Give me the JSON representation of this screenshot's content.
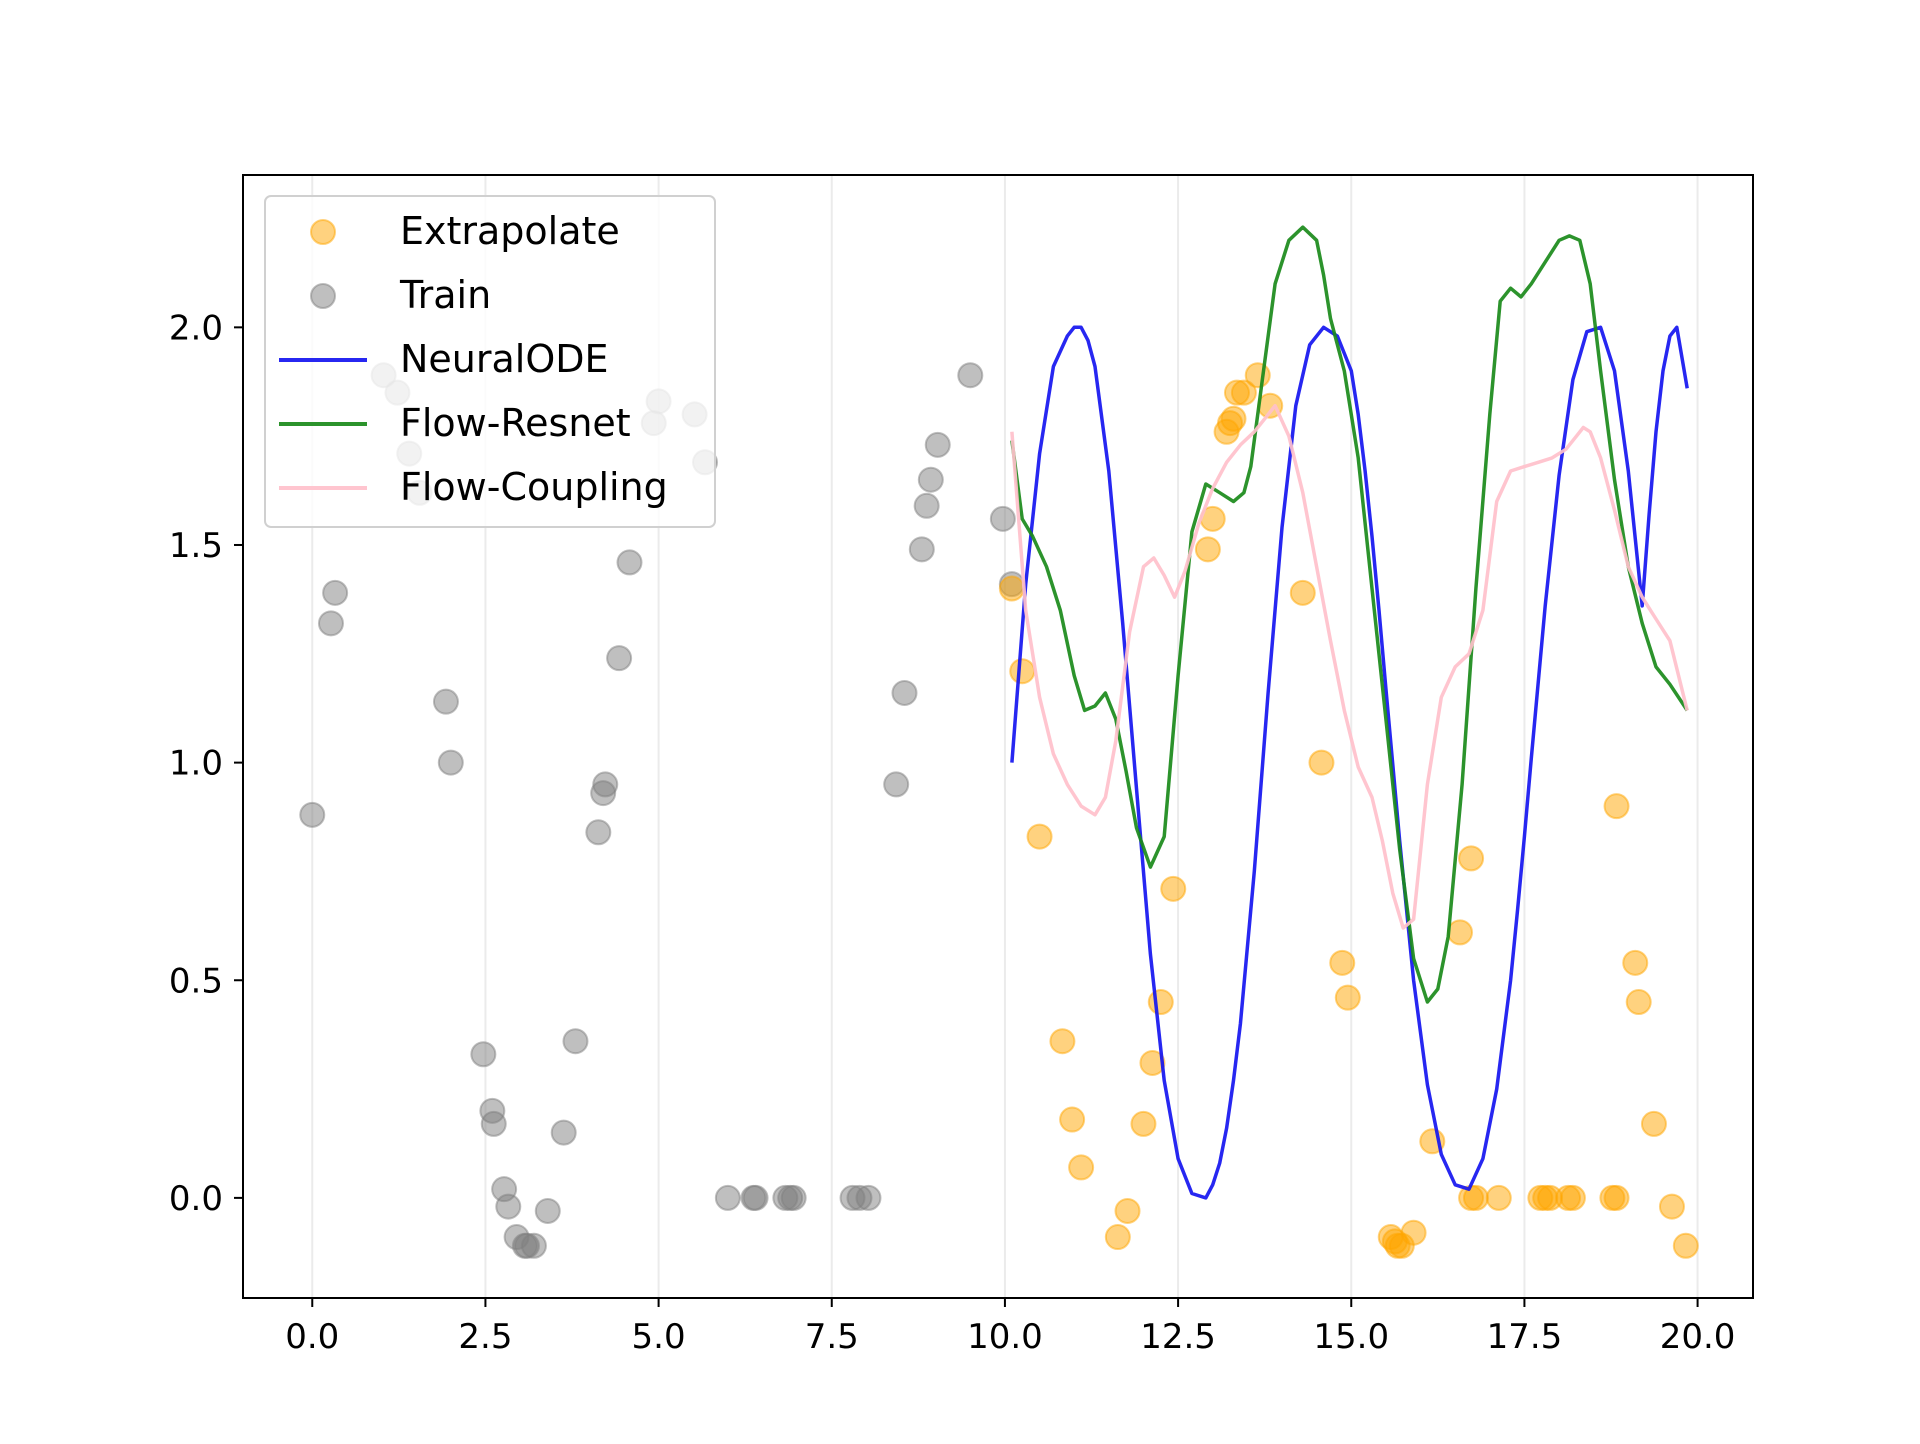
{
  "chart_data": {
    "type": "scatter",
    "title": "",
    "xlabel": "",
    "ylabel": "",
    "xlim": [
      -1.0,
      20.8
    ],
    "ylim": [
      -0.23,
      2.35
    ],
    "xticks": [
      0.0,
      2.5,
      5.0,
      7.5,
      10.0,
      12.5,
      15.0,
      17.5,
      20.0
    ],
    "xtick_labels": [
      "0.0",
      "2.5",
      "5.0",
      "7.5",
      "10.0",
      "12.5",
      "15.0",
      "17.5",
      "20.0"
    ],
    "yticks": [
      0.0,
      0.5,
      1.0,
      1.5,
      2.0
    ],
    "ytick_labels": [
      "0.0",
      "0.5",
      "1.0",
      "1.5",
      "2.0"
    ],
    "grid": "vertical",
    "legend_position": "upper-left",
    "legend": [
      "Extrapolate",
      "Train",
      "NeuralODE",
      "Flow-Resnet",
      "Flow-Coupling"
    ],
    "colors": {
      "Extrapolate": "#ffa500",
      "Train": "#808080",
      "NeuralODE": "#1515f0",
      "Flow-Resnet": "#1a8a1a",
      "Flow-Coupling": "#ffc0cb"
    },
    "scatter_series": [
      {
        "name": "Train",
        "points": [
          [
            0.0,
            0.88
          ],
          [
            0.27,
            1.32
          ],
          [
            0.33,
            1.39
          ],
          [
            1.03,
            1.89
          ],
          [
            1.23,
            1.85
          ],
          [
            1.4,
            1.71
          ],
          [
            1.55,
            1.62
          ],
          [
            1.93,
            1.14
          ],
          [
            2.0,
            1.0
          ],
          [
            2.47,
            0.33
          ],
          [
            2.6,
            0.2
          ],
          [
            2.62,
            0.17
          ],
          [
            2.77,
            0.02
          ],
          [
            2.83,
            -0.02
          ],
          [
            2.95,
            -0.09
          ],
          [
            3.07,
            -0.11
          ],
          [
            3.1,
            -0.11
          ],
          [
            3.2,
            -0.11
          ],
          [
            3.4,
            -0.03
          ],
          [
            3.63,
            0.15
          ],
          [
            3.8,
            0.36
          ],
          [
            4.13,
            0.84
          ],
          [
            4.2,
            0.93
          ],
          [
            4.23,
            0.95
          ],
          [
            4.43,
            1.24
          ],
          [
            4.58,
            1.46
          ],
          [
            4.93,
            1.78
          ],
          [
            5.0,
            1.83
          ],
          [
            5.52,
            1.8
          ],
          [
            5.67,
            1.69
          ],
          [
            6.0,
            0.0
          ],
          [
            6.37,
            0.0
          ],
          [
            6.4,
            0.0
          ],
          [
            6.83,
            0.0
          ],
          [
            6.9,
            0.0
          ],
          [
            6.95,
            0.0
          ],
          [
            7.8,
            0.0
          ],
          [
            7.9,
            0.0
          ],
          [
            8.03,
            0.0
          ],
          [
            8.43,
            0.95
          ],
          [
            8.55,
            1.16
          ],
          [
            8.8,
            1.49
          ],
          [
            8.87,
            1.59
          ],
          [
            8.93,
            1.65
          ],
          [
            9.03,
            1.73
          ],
          [
            9.5,
            1.89
          ],
          [
            9.97,
            1.56
          ],
          [
            10.1,
            1.41
          ]
        ]
      },
      {
        "name": "Extrapolate",
        "points": [
          [
            10.1,
            1.4
          ],
          [
            10.25,
            1.21
          ],
          [
            10.5,
            0.83
          ],
          [
            10.83,
            0.36
          ],
          [
            10.97,
            0.18
          ],
          [
            11.1,
            0.07
          ],
          [
            11.63,
            -0.09
          ],
          [
            11.77,
            -0.03
          ],
          [
            12.0,
            0.17
          ],
          [
            12.13,
            0.31
          ],
          [
            12.25,
            0.45
          ],
          [
            12.43,
            0.71
          ],
          [
            12.93,
            1.49
          ],
          [
            13.0,
            1.56
          ],
          [
            13.2,
            1.76
          ],
          [
            13.25,
            1.78
          ],
          [
            13.3,
            1.79
          ],
          [
            13.35,
            1.85
          ],
          [
            13.45,
            1.85
          ],
          [
            13.65,
            1.89
          ],
          [
            13.83,
            1.82
          ],
          [
            14.3,
            1.39
          ],
          [
            14.57,
            1.0
          ],
          [
            14.87,
            0.54
          ],
          [
            14.95,
            0.46
          ],
          [
            15.57,
            -0.09
          ],
          [
            15.63,
            -0.1
          ],
          [
            15.67,
            -0.11
          ],
          [
            15.73,
            -0.11
          ],
          [
            15.9,
            -0.08
          ],
          [
            16.17,
            0.13
          ],
          [
            16.57,
            0.61
          ],
          [
            16.73,
            0.78
          ],
          [
            16.73,
            0.0
          ],
          [
            16.8,
            0.0
          ],
          [
            17.13,
            0.0
          ],
          [
            17.73,
            0.0
          ],
          [
            17.8,
            0.0
          ],
          [
            17.87,
            0.0
          ],
          [
            18.13,
            0.0
          ],
          [
            18.2,
            0.0
          ],
          [
            18.77,
            0.0
          ],
          [
            18.83,
            0.0
          ],
          [
            18.83,
            0.9
          ],
          [
            19.1,
            0.54
          ],
          [
            19.15,
            0.45
          ],
          [
            19.37,
            0.17
          ],
          [
            19.63,
            -0.02
          ],
          [
            19.83,
            -0.11
          ]
        ]
      }
    ],
    "line_series": [
      {
        "name": "NeuralODE",
        "x": [
          10.1,
          10.3,
          10.5,
          10.7,
          10.9,
          11.0,
          11.1,
          11.2,
          11.3,
          11.5,
          11.7,
          11.9,
          12.1,
          12.3,
          12.5,
          12.7,
          12.9,
          13.0,
          13.1,
          13.2,
          13.3,
          13.4,
          13.6,
          13.8,
          14.0,
          14.2,
          14.4,
          14.6,
          14.8,
          15.0,
          15.1,
          15.2,
          15.3,
          15.4,
          15.5,
          15.7,
          15.9,
          16.1,
          16.3,
          16.5,
          16.7,
          16.9,
          17.1,
          17.3,
          17.4,
          17.5,
          17.6,
          17.8,
          18.0,
          18.2,
          18.4,
          18.6,
          18.8,
          19.0,
          19.2,
          19.3,
          19.4,
          19.5,
          19.6,
          19.7,
          19.85
        ],
        "y": [
          1.0,
          1.41,
          1.71,
          1.91,
          1.98,
          2.0,
          2.0,
          1.97,
          1.91,
          1.67,
          1.32,
          0.94,
          0.56,
          0.27,
          0.09,
          0.01,
          0.0,
          0.03,
          0.08,
          0.16,
          0.27,
          0.4,
          0.75,
          1.16,
          1.54,
          1.82,
          1.96,
          2.0,
          1.98,
          1.9,
          1.8,
          1.67,
          1.52,
          1.35,
          1.17,
          0.82,
          0.5,
          0.26,
          0.1,
          0.03,
          0.02,
          0.09,
          0.25,
          0.5,
          0.66,
          0.83,
          1.01,
          1.36,
          1.66,
          1.88,
          1.99,
          2.0,
          1.9,
          1.67,
          1.36,
          1.57,
          1.76,
          1.9,
          1.98,
          2.0,
          1.86
        ]
      },
      {
        "name": "Flow-Resnet",
        "x": [
          10.1,
          10.25,
          10.4,
          10.6,
          10.8,
          11.0,
          11.15,
          11.3,
          11.45,
          11.6,
          11.75,
          11.9,
          12.1,
          12.3,
          12.5,
          12.7,
          12.9,
          13.1,
          13.3,
          13.45,
          13.55,
          13.7,
          13.9,
          14.1,
          14.3,
          14.5,
          14.6,
          14.7,
          14.9,
          15.1,
          15.3,
          15.5,
          15.7,
          15.9,
          16.1,
          16.25,
          16.4,
          16.6,
          16.8,
          17.0,
          17.15,
          17.3,
          17.45,
          17.6,
          17.8,
          18.0,
          18.15,
          18.3,
          18.45,
          18.6,
          18.8,
          19.0,
          19.2,
          19.4,
          19.6,
          19.85
        ],
        "y": [
          1.74,
          1.56,
          1.52,
          1.45,
          1.35,
          1.2,
          1.12,
          1.13,
          1.16,
          1.1,
          0.98,
          0.85,
          0.76,
          0.83,
          1.2,
          1.53,
          1.64,
          1.62,
          1.6,
          1.62,
          1.68,
          1.86,
          2.1,
          2.2,
          2.23,
          2.2,
          2.12,
          2.02,
          1.9,
          1.7,
          1.4,
          1.1,
          0.8,
          0.55,
          0.45,
          0.48,
          0.6,
          0.95,
          1.4,
          1.8,
          2.06,
          2.09,
          2.07,
          2.1,
          2.15,
          2.2,
          2.21,
          2.2,
          2.1,
          1.9,
          1.65,
          1.45,
          1.32,
          1.22,
          1.18,
          1.12
        ]
      },
      {
        "name": "Flow-Coupling",
        "x": [
          10.1,
          10.3,
          10.5,
          10.7,
          10.9,
          11.1,
          11.3,
          11.45,
          11.6,
          11.8,
          12.0,
          12.15,
          12.3,
          12.45,
          12.6,
          12.8,
          13.0,
          13.2,
          13.4,
          13.6,
          13.75,
          13.9,
          14.1,
          14.3,
          14.5,
          14.7,
          14.9,
          15.1,
          15.3,
          15.45,
          15.6,
          15.75,
          15.9,
          16.1,
          16.3,
          16.5,
          16.7,
          16.9,
          17.1,
          17.3,
          17.5,
          17.7,
          17.9,
          18.1,
          18.25,
          18.35,
          18.45,
          18.6,
          18.8,
          19.0,
          19.2,
          19.4,
          19.6,
          19.85
        ],
        "y": [
          1.76,
          1.35,
          1.15,
          1.02,
          0.95,
          0.9,
          0.88,
          0.92,
          1.05,
          1.3,
          1.45,
          1.47,
          1.43,
          1.38,
          1.44,
          1.55,
          1.63,
          1.69,
          1.73,
          1.76,
          1.79,
          1.82,
          1.75,
          1.62,
          1.45,
          1.28,
          1.12,
          0.99,
          0.92,
          0.82,
          0.7,
          0.62,
          0.64,
          0.95,
          1.15,
          1.22,
          1.25,
          1.35,
          1.6,
          1.67,
          1.68,
          1.69,
          1.7,
          1.72,
          1.75,
          1.77,
          1.76,
          1.7,
          1.58,
          1.45,
          1.38,
          1.33,
          1.28,
          1.12
        ]
      }
    ]
  }
}
